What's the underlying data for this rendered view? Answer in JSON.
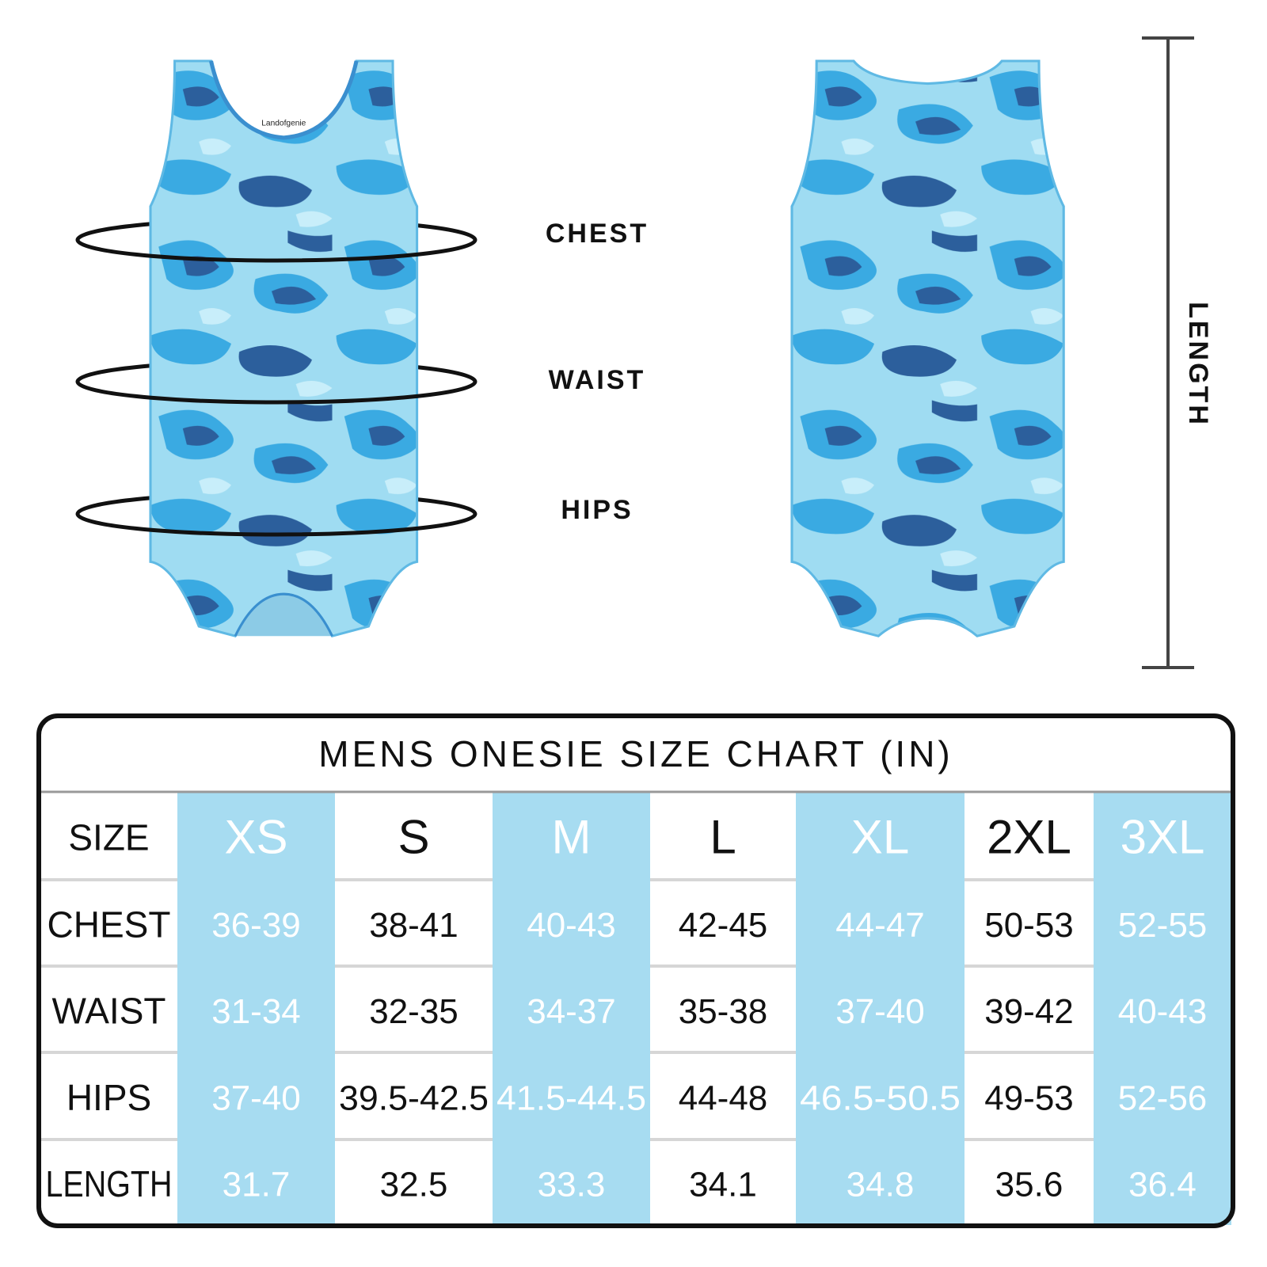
{
  "garment": {
    "brand": "Landofgenie"
  },
  "measure_labels": {
    "chest": "CHEST",
    "waist": "WAIST",
    "hips": "HIPS",
    "length": "LENGTH"
  },
  "table": {
    "title": "MENS ONESIE SIZE CHART (IN)",
    "header": [
      "SIZE",
      "XS",
      "S",
      "M",
      "L",
      "XL",
      "2XL",
      "3XL"
    ],
    "rows": [
      [
        "CHEST",
        "36-39",
        "38-41",
        "40-43",
        "42-45",
        "44-47",
        "50-53",
        "52-55"
      ],
      [
        "WAIST",
        "31-34",
        "32-35",
        "34-37",
        "35-38",
        "37-40",
        "39-42",
        "40-43"
      ],
      [
        "HIPS",
        "37-40",
        "39.5-42.5",
        "41.5-44.5",
        "44-48",
        "46.5-50.5",
        "49-53",
        "52-56"
      ],
      [
        "LENGTH",
        "31.7",
        "32.5",
        "33.3",
        "34.1",
        "34.8",
        "35.6",
        "36.4"
      ]
    ]
  }
}
